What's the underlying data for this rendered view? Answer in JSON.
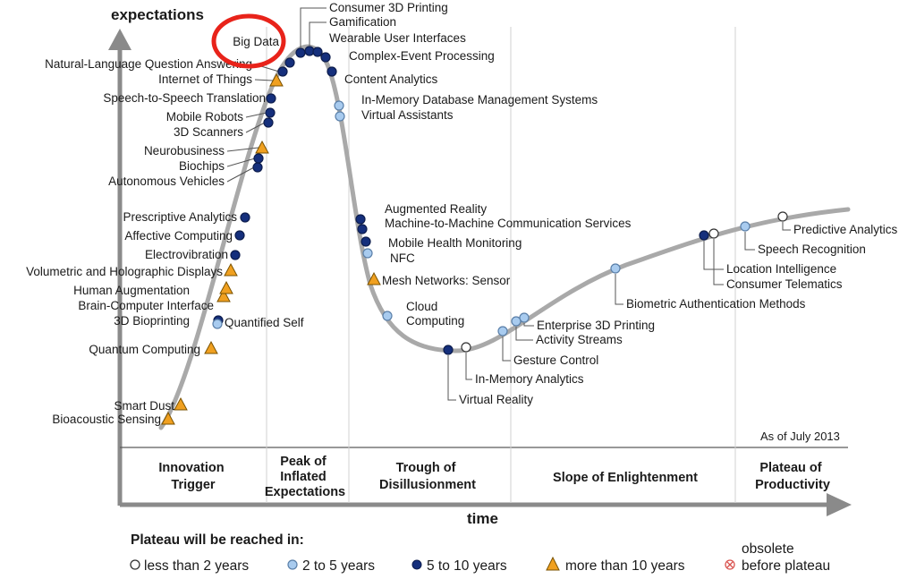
{
  "axes": {
    "y_title": "expectations",
    "x_title": "time"
  },
  "as_of": "As of July 2013",
  "phases": [
    {
      "id": "innovation-trigger",
      "lines": [
        "Innovation",
        "Trigger"
      ]
    },
    {
      "id": "peak",
      "lines": [
        "Peak of",
        "Inflated",
        "Expectations"
      ]
    },
    {
      "id": "trough",
      "lines": [
        "Trough of",
        "Disillusionment"
      ]
    },
    {
      "id": "slope",
      "lines": [
        "Slope of Enlightenment"
      ]
    },
    {
      "id": "plateau",
      "lines": [
        "Plateau of",
        "Productivity"
      ]
    }
  ],
  "colors": {
    "curve": "#a9a9a9",
    "lt2_fill": "#ffffff",
    "y2to5_fill": "#a8cbef",
    "y5to10_fill": "#152f7c",
    "gt10_fill": "#f0a020",
    "highlight_circle": "#e8231a",
    "obsolete": "#d9534f"
  },
  "legend": {
    "title": "Plateau will be reached in:",
    "items": [
      {
        "key": "lt2",
        "label": "less than 2 years"
      },
      {
        "key": "y2to5",
        "label": "2 to 5 years"
      },
      {
        "key": "y5to10",
        "label": "5 to 10 years"
      },
      {
        "key": "gt10",
        "label": "more than 10 years"
      },
      {
        "key": "obsolete",
        "label_line1": "obsolete",
        "label_line2": "before plateau"
      }
    ]
  },
  "technologies": [
    {
      "name": "Bioacoustic Sensing",
      "cat": "gt10"
    },
    {
      "name": "Smart Dust",
      "cat": "gt10"
    },
    {
      "name": "Quantum Computing",
      "cat": "gt10"
    },
    {
      "name": "3D Bioprinting",
      "cat": "y5to10"
    },
    {
      "name": "Quantified Self",
      "cat": "y2to5"
    },
    {
      "name": "Brain-Computer Interface",
      "cat": "gt10"
    },
    {
      "name": "Human Augmentation",
      "cat": "gt10"
    },
    {
      "name": "Volumetric and Holographic Displays",
      "cat": "gt10"
    },
    {
      "name": "Electrovibration",
      "cat": "y5to10"
    },
    {
      "name": "Affective Computing",
      "cat": "y5to10"
    },
    {
      "name": "Prescriptive Analytics",
      "cat": "y5to10"
    },
    {
      "name": "Autonomous Vehicles",
      "cat": "y5to10"
    },
    {
      "name": "Biochips",
      "cat": "y5to10"
    },
    {
      "name": "Neurobusiness",
      "cat": "gt10"
    },
    {
      "name": "3D Scanners",
      "cat": "y5to10"
    },
    {
      "name": "Mobile Robots",
      "cat": "y5to10"
    },
    {
      "name": "Speech-to-Speech Translation",
      "cat": "y5to10"
    },
    {
      "name": "Internet of Things",
      "cat": "gt10"
    },
    {
      "name": "Natural-Language Question Answering",
      "cat": "y5to10"
    },
    {
      "name": "Big Data",
      "cat": "y5to10",
      "highlighted": true
    },
    {
      "name": "Consumer 3D Printing",
      "cat": "y5to10"
    },
    {
      "name": "Gamification",
      "cat": "y5to10"
    },
    {
      "name": "Wearable User Interfaces",
      "cat": "y5to10"
    },
    {
      "name": "Complex-Event Processing",
      "cat": "y5to10"
    },
    {
      "name": "Content Analytics",
      "cat": "y5to10"
    },
    {
      "name": "In-Memory Database Management Systems",
      "cat": "y2to5"
    },
    {
      "name": "Virtual Assistants",
      "cat": "y2to5"
    },
    {
      "name": "Augmented Reality",
      "cat": "y5to10"
    },
    {
      "name": "Machine-to-Machine Communication Services",
      "cat": "y5to10"
    },
    {
      "name": "Mobile Health Monitoring",
      "cat": "y5to10"
    },
    {
      "name": "NFC",
      "cat": "y2to5"
    },
    {
      "name": "Mesh Networks: Sensor",
      "cat": "gt10"
    },
    {
      "name": "Cloud Computing",
      "cat": "y2to5",
      "lines": [
        "Cloud",
        "Computing"
      ]
    },
    {
      "name": "Virtual Reality",
      "cat": "y5to10"
    },
    {
      "name": "In-Memory Analytics",
      "cat": "lt2"
    },
    {
      "name": "Gesture Control",
      "cat": "y2to5"
    },
    {
      "name": "Activity Streams",
      "cat": "y2to5"
    },
    {
      "name": "Enterprise 3D Printing",
      "cat": "y2to5"
    },
    {
      "name": "Biometric Authentication Methods",
      "cat": "y2to5"
    },
    {
      "name": "Location Intelligence",
      "cat": "y5to10"
    },
    {
      "name": "Consumer Telematics",
      "cat": "lt2"
    },
    {
      "name": "Speech Recognition",
      "cat": "y2to5"
    },
    {
      "name": "Predictive Analytics",
      "cat": "lt2"
    }
  ]
}
